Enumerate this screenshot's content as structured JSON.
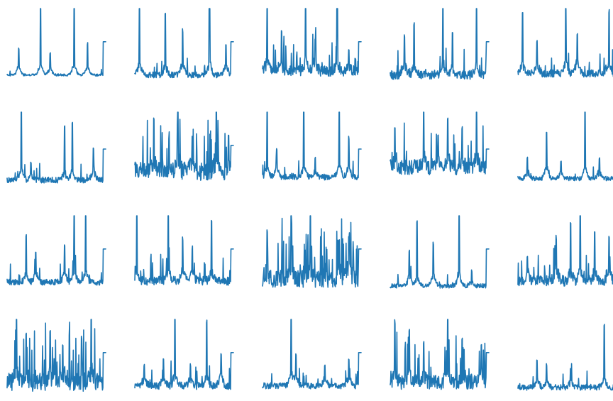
{
  "chart_data": [
    {
      "type": "line",
      "row": 1,
      "col": 1,
      "baseline": 0.1,
      "peaks": [
        [
          0.12,
          0.35
        ],
        [
          0.35,
          1.0
        ],
        [
          0.45,
          0.3
        ],
        [
          0.7,
          0.95
        ],
        [
          0.84,
          0.4
        ]
      ],
      "spikiness": 0.03,
      "plateau": 0.55,
      "color": "#1f77b4"
    },
    {
      "type": "line",
      "row": 1,
      "col": 2,
      "baseline": 0.1,
      "peaks": [
        [
          0.05,
          0.9
        ],
        [
          0.32,
          0.8
        ],
        [
          0.5,
          0.55
        ],
        [
          0.78,
          1.0
        ],
        [
          0.95,
          0.4
        ]
      ],
      "spikiness": 0.08,
      "plateau": 0.55,
      "color": "#1f77b4"
    },
    {
      "type": "line",
      "row": 1,
      "col": 3,
      "baseline": 0.15,
      "peaks": [
        [
          0.05,
          1.0
        ],
        [
          0.2,
          0.6
        ],
        [
          0.45,
          0.9
        ],
        [
          0.55,
          0.45
        ],
        [
          0.78,
          0.95
        ],
        [
          0.9,
          0.35
        ]
      ],
      "spikiness": 0.15,
      "plateau": 0.55,
      "color": "#1f77b4"
    },
    {
      "type": "line",
      "row": 1,
      "col": 4,
      "baseline": 0.1,
      "peaks": [
        [
          0.15,
          0.5
        ],
        [
          0.25,
          0.7
        ],
        [
          0.55,
          0.95
        ],
        [
          0.65,
          0.6
        ],
        [
          0.9,
          1.0
        ]
      ],
      "spikiness": 0.12,
      "plateau": 0.55,
      "color": "#1f77b4"
    },
    {
      "type": "line",
      "row": 1,
      "col": 5,
      "baseline": 0.12,
      "peaks": [
        [
          0.05,
          0.85
        ],
        [
          0.2,
          0.45
        ],
        [
          0.5,
          1.0
        ],
        [
          0.62,
          0.5
        ],
        [
          0.95,
          0.85
        ]
      ],
      "spikiness": 0.1,
      "plateau": 0.55,
      "color": "#1f77b4"
    },
    {
      "type": "line",
      "row": 2,
      "col": 1,
      "baseline": 0.08,
      "peaks": [
        [
          0.15,
          1.0
        ],
        [
          0.25,
          0.25
        ],
        [
          0.6,
          0.7
        ],
        [
          0.68,
          0.75
        ],
        [
          0.9,
          0.4
        ]
      ],
      "spikiness": 0.08,
      "plateau": 0.5,
      "color": "#1f77b4"
    },
    {
      "type": "line",
      "row": 2,
      "col": 2,
      "baseline": 0.2,
      "peaks": [
        [
          0.2,
          0.8
        ],
        [
          0.45,
          0.95
        ],
        [
          0.6,
          0.5
        ],
        [
          0.85,
          1.0
        ],
        [
          0.98,
          0.6
        ]
      ],
      "spikiness": 0.25,
      "plateau": 0.55,
      "color": "#1f77b4"
    },
    {
      "type": "line",
      "row": 2,
      "col": 3,
      "baseline": 0.12,
      "peaks": [
        [
          0.05,
          0.9
        ],
        [
          0.15,
          0.4
        ],
        [
          0.43,
          1.0
        ],
        [
          0.55,
          0.3
        ],
        [
          0.8,
          1.0
        ],
        [
          0.9,
          0.5
        ]
      ],
      "spikiness": 0.08,
      "plateau": 0.5,
      "color": "#1f77b4"
    },
    {
      "type": "line",
      "row": 2,
      "col": 4,
      "baseline": 0.25,
      "peaks": [
        [
          0.05,
          0.7
        ],
        [
          0.35,
          0.9
        ],
        [
          0.5,
          0.55
        ],
        [
          0.6,
          0.8
        ],
        [
          0.75,
          0.7
        ],
        [
          0.9,
          1.0
        ]
      ],
      "spikiness": 0.2,
      "plateau": 0.5,
      "color": "#1f77b4"
    },
    {
      "type": "line",
      "row": 2,
      "col": 5,
      "baseline": 0.1,
      "peaks": [
        [
          0.1,
          0.3
        ],
        [
          0.3,
          0.55
        ],
        [
          0.45,
          0.25
        ],
        [
          0.7,
          1.0
        ],
        [
          0.85,
          0.3
        ]
      ],
      "spikiness": 0.06,
      "plateau": 0.5,
      "color": "#1f77b4"
    },
    {
      "type": "line",
      "row": 3,
      "col": 1,
      "baseline": 0.1,
      "peaks": [
        [
          0.2,
          0.65
        ],
        [
          0.3,
          0.4
        ],
        [
          0.6,
          0.45
        ],
        [
          0.7,
          1.0
        ],
        [
          0.82,
          0.95
        ]
      ],
      "spikiness": 0.08,
      "plateau": 0.55,
      "color": "#1f77b4"
    },
    {
      "type": "line",
      "row": 3,
      "col": 2,
      "baseline": 0.12,
      "peaks": [
        [
          0.02,
          0.9
        ],
        [
          0.35,
          1.0
        ],
        [
          0.5,
          0.55
        ],
        [
          0.6,
          0.45
        ],
        [
          0.8,
          0.8
        ]
      ],
      "spikiness": 0.12,
      "plateau": 0.55,
      "color": "#1f77b4"
    },
    {
      "type": "line",
      "row": 3,
      "col": 3,
      "baseline": 0.15,
      "peaks": [
        [
          0.05,
          0.7
        ],
        [
          0.3,
          0.95
        ],
        [
          0.5,
          1.0
        ],
        [
          0.8,
          0.6
        ],
        [
          0.9,
          0.55
        ]
      ],
      "spikiness": 0.25,
      "plateau": 0.55,
      "color": "#1f77b4"
    },
    {
      "type": "line",
      "row": 3,
      "col": 4,
      "baseline": 0.05,
      "peaks": [
        [
          0.2,
          0.4
        ],
        [
          0.28,
          0.8
        ],
        [
          0.45,
          0.5
        ],
        [
          0.72,
          1.0
        ],
        [
          0.85,
          0.2
        ]
      ],
      "spikiness": 0.06,
      "plateau": 0.55,
      "color": "#1f77b4"
    },
    {
      "type": "line",
      "row": 3,
      "col": 5,
      "baseline": 0.12,
      "peaks": [
        [
          0.1,
          0.35
        ],
        [
          0.4,
          0.55
        ],
        [
          0.55,
          0.8
        ],
        [
          0.65,
          1.0
        ],
        [
          0.8,
          0.7
        ],
        [
          0.95,
          0.55
        ]
      ],
      "spikiness": 0.15,
      "plateau": 0.55,
      "color": "#1f77b4"
    },
    {
      "type": "line",
      "row": 4,
      "col": 1,
      "baseline": 0.15,
      "peaks": [
        [
          0.1,
          1.0
        ],
        [
          0.2,
          0.7
        ],
        [
          0.45,
          0.75
        ],
        [
          0.58,
          0.5
        ],
        [
          0.88,
          0.95
        ]
      ],
      "spikiness": 0.25,
      "plateau": 0.55,
      "color": "#1f77b4"
    },
    {
      "type": "line",
      "row": 4,
      "col": 2,
      "baseline": 0.1,
      "peaks": [
        [
          0.1,
          0.3
        ],
        [
          0.3,
          0.35
        ],
        [
          0.42,
          1.0
        ],
        [
          0.58,
          0.3
        ],
        [
          0.75,
          0.85
        ],
        [
          0.9,
          0.4
        ]
      ],
      "spikiness": 0.1,
      "plateau": 0.55,
      "color": "#1f77b4"
    },
    {
      "type": "line",
      "row": 4,
      "col": 3,
      "baseline": 0.1,
      "peaks": [
        [
          0.3,
          1.0
        ],
        [
          0.35,
          0.4
        ],
        [
          0.65,
          0.3
        ],
        [
          0.9,
          0.35
        ]
      ],
      "spikiness": 0.08,
      "plateau": 0.55,
      "color": "#1f77b4"
    },
    {
      "type": "line",
      "row": 4,
      "col": 4,
      "baseline": 0.15,
      "peaks": [
        [
          0.05,
          0.85
        ],
        [
          0.2,
          0.75
        ],
        [
          0.35,
          0.6
        ],
        [
          0.6,
          1.0
        ],
        [
          0.75,
          0.65
        ],
        [
          0.95,
          0.5
        ]
      ],
      "spikiness": 0.2,
      "plateau": 0.55,
      "color": "#1f77b4"
    },
    {
      "type": "line",
      "row": 4,
      "col": 5,
      "baseline": 0.08,
      "peaks": [
        [
          0.2,
          0.35
        ],
        [
          0.3,
          0.3
        ],
        [
          0.55,
          0.25
        ],
        [
          0.9,
          0.8
        ]
      ],
      "spikiness": 0.08,
      "plateau": 0.55,
      "color": "#1f77b4"
    }
  ]
}
